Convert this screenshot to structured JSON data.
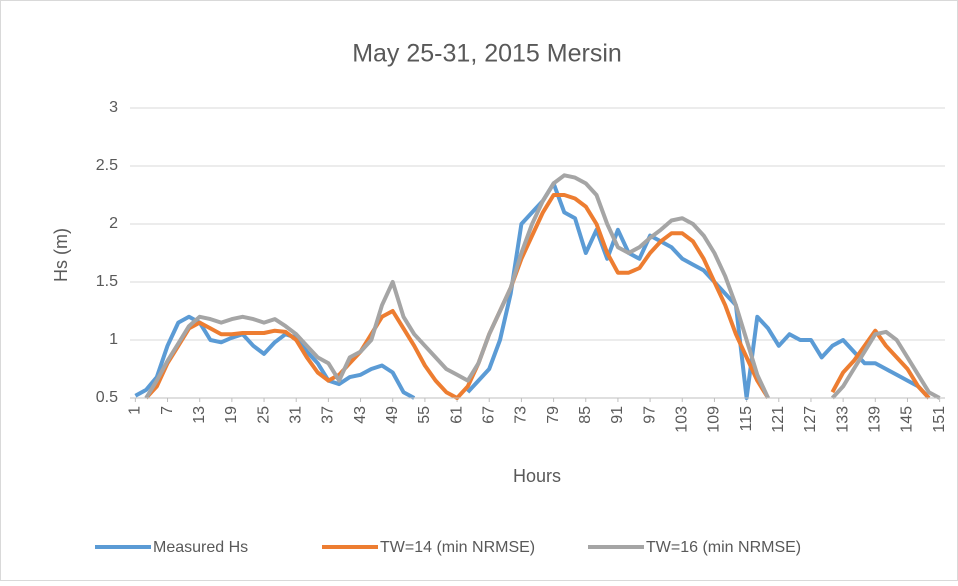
{
  "chart_data": {
    "type": "line",
    "title": "May 25-31, 2015 Mersin",
    "x_label": "Hours",
    "y_label": "Hs (m)",
    "x": [
      1,
      3,
      5,
      7,
      9,
      11,
      13,
      15,
      17,
      19,
      21,
      23,
      25,
      27,
      29,
      31,
      33,
      35,
      37,
      39,
      41,
      43,
      45,
      47,
      49,
      51,
      53,
      55,
      57,
      59,
      61,
      63,
      65,
      67,
      69,
      71,
      73,
      75,
      77,
      79,
      81,
      83,
      85,
      87,
      89,
      91,
      93,
      95,
      97,
      99,
      101,
      103,
      105,
      107,
      109,
      111,
      113,
      115,
      117,
      119,
      121,
      123,
      125,
      127,
      129,
      131,
      133,
      135,
      137,
      139,
      141,
      143,
      145,
      147,
      149,
      151
    ],
    "series": [
      {
        "name": "Measured Hs",
        "color": "#5b9bd5",
        "values": [
          0.52,
          0.57,
          0.68,
          0.95,
          1.15,
          1.2,
          1.15,
          1.0,
          0.98,
          1.02,
          1.05,
          0.95,
          0.88,
          0.98,
          1.05,
          1.02,
          0.9,
          0.8,
          0.65,
          0.62,
          0.68,
          0.7,
          0.75,
          0.78,
          0.72,
          0.55,
          0.5,
          null,
          null,
          null,
          null,
          0.55,
          0.65,
          0.75,
          1.0,
          1.4,
          2.0,
          2.1,
          2.2,
          2.35,
          2.1,
          2.05,
          1.75,
          1.95,
          1.7,
          1.95,
          1.75,
          1.7,
          1.9,
          1.85,
          1.8,
          1.7,
          1.65,
          1.6,
          1.5,
          1.4,
          1.3,
          0.5,
          1.2,
          1.1,
          0.95,
          1.05,
          1.0,
          1.0,
          0.85,
          0.95,
          1.0,
          0.9,
          0.8,
          0.8,
          0.75,
          0.7,
          0.65,
          0.6,
          0.5,
          null
        ]
      },
      {
        "name": "TW=14 (min NRMSE)",
        "color": "#ed7d31",
        "values": [
          null,
          0.5,
          0.6,
          0.8,
          0.95,
          1.1,
          1.15,
          1.1,
          1.05,
          1.05,
          1.06,
          1.06,
          1.06,
          1.08,
          1.07,
          1.0,
          0.85,
          0.72,
          0.65,
          0.7,
          0.8,
          0.9,
          1.05,
          1.2,
          1.25,
          1.1,
          0.95,
          0.78,
          0.65,
          0.55,
          0.5,
          0.6,
          0.8,
          1.05,
          1.25,
          1.45,
          1.7,
          1.9,
          2.1,
          2.25,
          2.25,
          2.22,
          2.15,
          2.0,
          1.75,
          1.58,
          1.58,
          1.62,
          1.75,
          1.85,
          1.92,
          1.92,
          1.85,
          1.7,
          1.5,
          1.3,
          1.05,
          0.85,
          0.65,
          0.5,
          null,
          null,
          null,
          null,
          null,
          0.55,
          0.72,
          0.82,
          0.95,
          1.08,
          0.95,
          0.85,
          0.75,
          0.6,
          0.5,
          null
        ]
      },
      {
        "name": "TW=16 (min NRMSE)",
        "color": "#a5a5a5",
        "values": [
          null,
          0.5,
          0.65,
          0.82,
          0.97,
          1.12,
          1.2,
          1.18,
          1.15,
          1.18,
          1.2,
          1.18,
          1.15,
          1.18,
          1.12,
          1.05,
          0.95,
          0.85,
          0.8,
          0.65,
          0.85,
          0.9,
          1.0,
          1.3,
          1.5,
          1.2,
          1.05,
          0.95,
          0.85,
          0.75,
          0.7,
          0.65,
          0.8,
          1.05,
          1.25,
          1.45,
          1.75,
          2.0,
          2.2,
          2.35,
          2.42,
          2.4,
          2.35,
          2.25,
          2.0,
          1.8,
          1.75,
          1.8,
          1.88,
          1.95,
          2.03,
          2.05,
          2.0,
          1.9,
          1.75,
          1.55,
          1.3,
          1.0,
          0.7,
          0.5,
          null,
          null,
          null,
          null,
          null,
          0.5,
          0.6,
          0.75,
          0.9,
          1.05,
          1.07,
          1.0,
          0.85,
          0.7,
          0.55,
          0.5
        ]
      }
    ],
    "xlim": [
      0,
      152
    ],
    "xticks": [
      1,
      7,
      13,
      19,
      25,
      31,
      37,
      43,
      49,
      55,
      61,
      67,
      73,
      79,
      85,
      91,
      97,
      103,
      109,
      115,
      121,
      127,
      133,
      139,
      145,
      151
    ],
    "ylim": [
      0.5,
      3
    ],
    "yticks": [
      0.5,
      1,
      {
        "value": 1.5,
        "label": "1.5"
      },
      2,
      {
        "value": 2.5,
        "label": "2.5"
      },
      3
    ],
    "grid": true,
    "legend": "bottom"
  }
}
